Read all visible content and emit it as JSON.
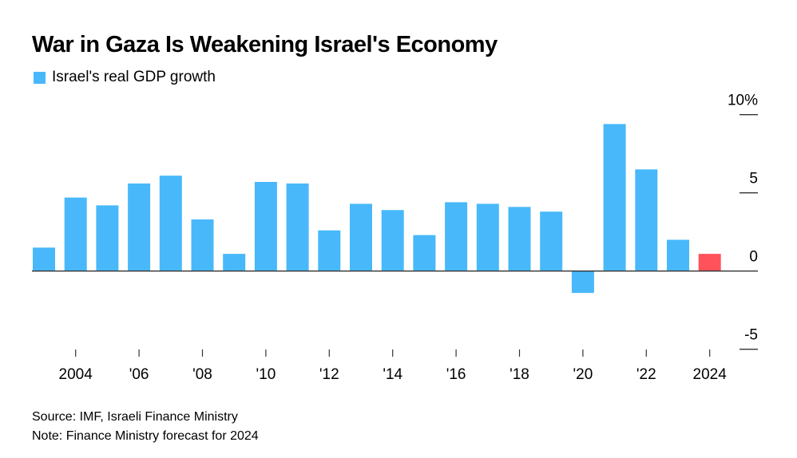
{
  "title": "War in Gaza Is Weakening Israel's Economy",
  "legend": {
    "label": "Israel's real GDP growth"
  },
  "source": "Source: IMF, Israeli Finance Ministry",
  "note": "Note: Finance Ministry forecast for 2024",
  "colors": {
    "bar": "#48b8fa",
    "forecast": "#ff525a",
    "axis": "#333333"
  },
  "chart_data": {
    "type": "bar",
    "title": "War in Gaza Is Weakening Israel's Economy",
    "xlabel": "",
    "ylabel": "",
    "ylim": [
      -5,
      10
    ],
    "grid": true,
    "legend_position": "top-left",
    "x": [
      2003,
      2004,
      2005,
      2006,
      2007,
      2008,
      2009,
      2010,
      2011,
      2012,
      2013,
      2014,
      2015,
      2016,
      2017,
      2018,
      2019,
      2020,
      2021,
      2022,
      2023,
      2024
    ],
    "series": [
      {
        "name": "Israel's real GDP growth",
        "values": [
          1.5,
          4.7,
          4.2,
          5.6,
          6.1,
          3.3,
          1.1,
          5.7,
          5.6,
          2.6,
          4.3,
          3.9,
          2.3,
          4.4,
          4.3,
          4.1,
          3.8,
          -1.4,
          9.4,
          6.5,
          2.0,
          1.1
        ]
      }
    ],
    "forecast_years": [
      2024
    ],
    "y_ticks": [
      {
        "value": 10,
        "label": "10%"
      },
      {
        "value": 5,
        "label": "5"
      },
      {
        "value": 0,
        "label": "0"
      },
      {
        "value": -5,
        "label": "-5"
      }
    ],
    "x_ticks": [
      {
        "year": 2004,
        "label": "2004"
      },
      {
        "year": 2006,
        "label": "'06"
      },
      {
        "year": 2008,
        "label": "'08"
      },
      {
        "year": 2010,
        "label": "'10"
      },
      {
        "year": 2012,
        "label": "'12"
      },
      {
        "year": 2014,
        "label": "'14"
      },
      {
        "year": 2016,
        "label": "'16"
      },
      {
        "year": 2018,
        "label": "'18"
      },
      {
        "year": 2020,
        "label": "'20"
      },
      {
        "year": 2022,
        "label": "'22"
      },
      {
        "year": 2024,
        "label": "2024"
      }
    ]
  }
}
